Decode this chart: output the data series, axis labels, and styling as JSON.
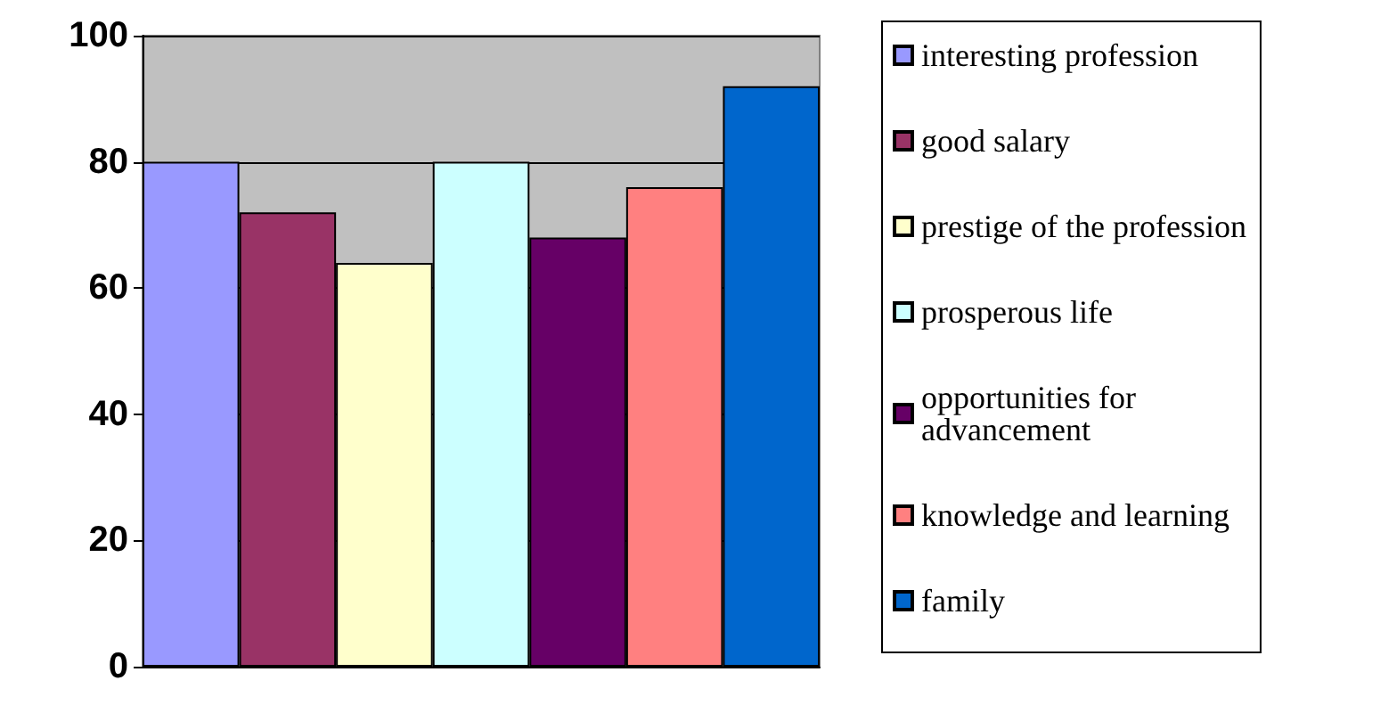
{
  "chart_data": {
    "type": "bar",
    "categories": [
      null
    ],
    "series": [
      {
        "name": "interesting profession",
        "color": "#9999ff",
        "values": [
          80
        ]
      },
      {
        "name": "good salary",
        "color": "#993366",
        "values": [
          72
        ]
      },
      {
        "name": "prestige of the profession",
        "color": "#ffffcc",
        "values": [
          64
        ]
      },
      {
        "name": "prosperous life",
        "color": "#ccffff",
        "values": [
          80
        ]
      },
      {
        "name": "opportunities for\nadvancement",
        "color": "#660066",
        "values": [
          68
        ]
      },
      {
        "name": "knowledge and learning",
        "color": "#ff8080",
        "values": [
          76
        ]
      },
      {
        "name": "family",
        "color": "#0066cc",
        "values": [
          92
        ]
      }
    ],
    "ylim": [
      0,
      100
    ],
    "yticks": [
      0,
      20,
      40,
      60,
      80,
      100
    ],
    "grid": "y",
    "legend": "right"
  }
}
